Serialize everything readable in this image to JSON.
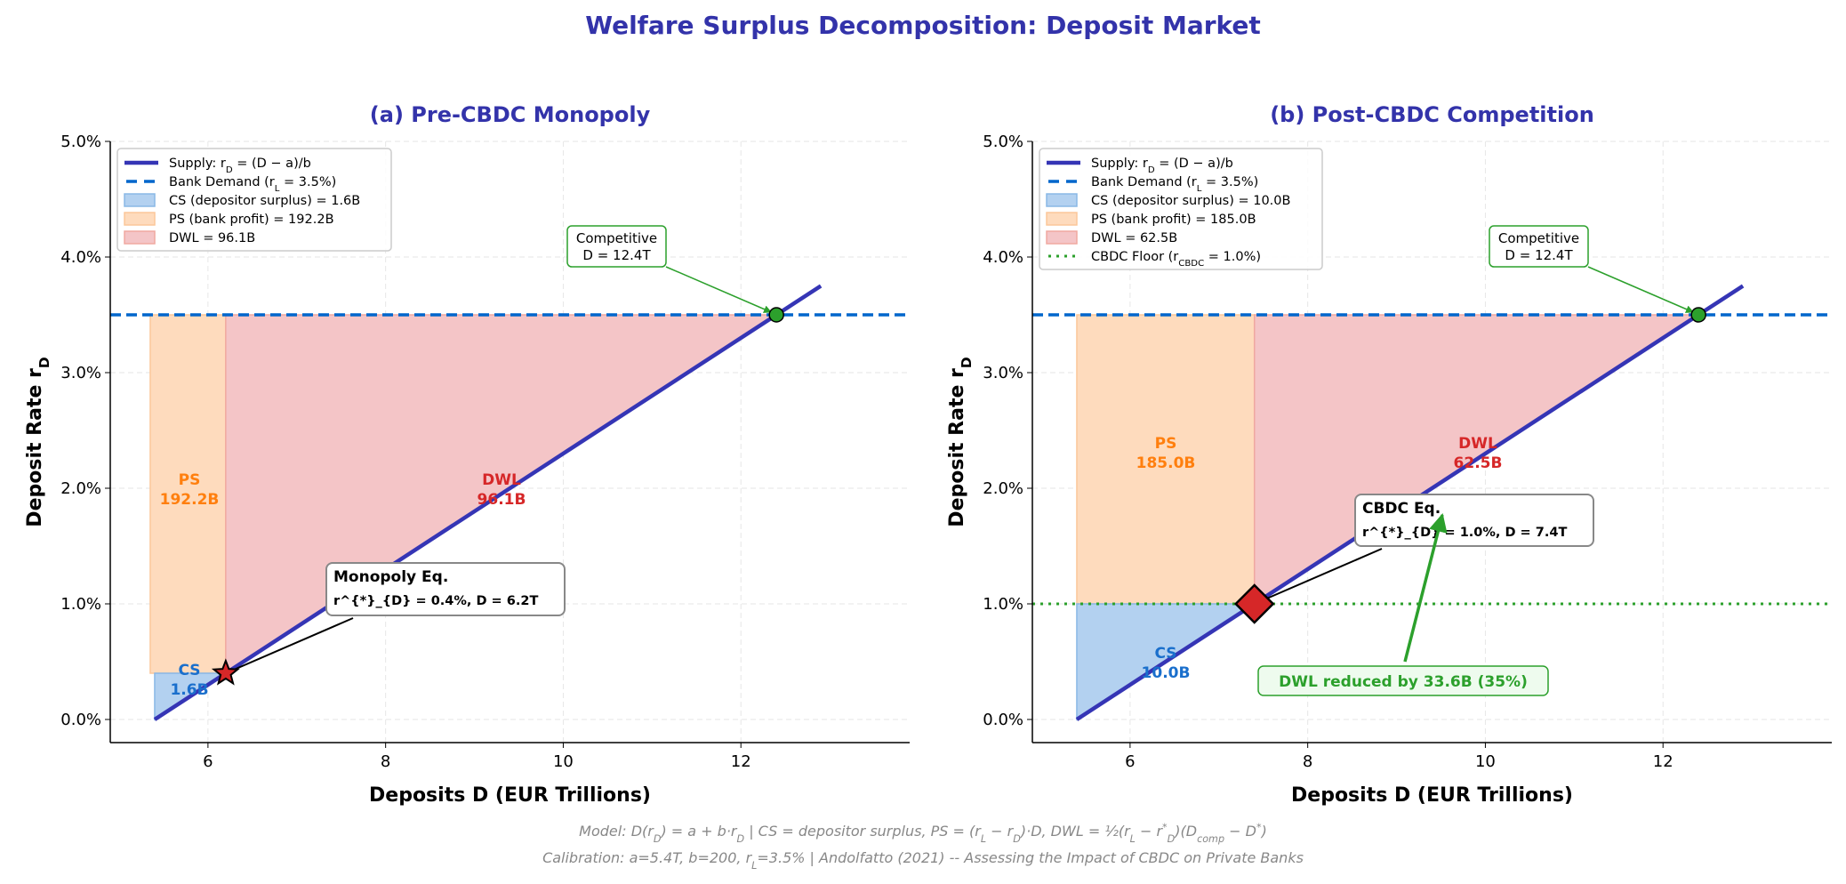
{
  "title": "Welfare Surplus Decomposition: Deposit Market",
  "footer": {
    "line1": "Model: D(r_{D}) = a + b·r_{D} | CS = depositor surplus, PS = (r_{L} − r_{D})·D, DWL = ½(r_{L} − r^{*}_{D})(D_{comp} − D^{*})",
    "line2": "Calibration: a=5.4T, b=200, r_{L}=3.5% | Andolfatto (2021) -- Assessing the Impact of CBDC on Private Banks"
  },
  "colors": {
    "title": "#3333aa",
    "supply": "#3535b5",
    "bank_demand": "#0066cc",
    "cs_fill": "#b3d1f0",
    "ps_fill": "#fedbbd",
    "dwl_fill": "#f4c5c7",
    "cs_text": "#1a6fcc",
    "ps_text": "#ff7f0e",
    "dwl_text": "#d62728",
    "green": "#2ca02c",
    "marker": "#d62728"
  },
  "chart_data": [
    {
      "type": "area",
      "title": "(a) Pre-CBDC Monopoly",
      "xlabel": "Deposits D (EUR Trillions)",
      "ylabel": "Deposit Rate r_{D}",
      "xlim": [
        4.9,
        13.9
      ],
      "ylim": [
        -0.2,
        5.0
      ],
      "xticks": [
        6,
        8,
        10,
        12
      ],
      "xtick_labels": [
        "6",
        "8",
        "10",
        "12"
      ],
      "yticks": [
        0,
        1,
        2,
        3,
        4,
        5
      ],
      "ytick_labels": [
        "0.0%",
        "1.0%",
        "2.0%",
        "3.0%",
        "4.0%",
        "5.0%"
      ],
      "grid": true,
      "legend_position": "upper-left",
      "supply": {
        "x": [
          5.4,
          12.9
        ],
        "y": [
          0,
          3.75
        ]
      },
      "bank_demand_rate": 3.5,
      "equilibrium": {
        "D": 6.2,
        "r": 0.4,
        "marker": "star"
      },
      "competitive": {
        "D": 12.4,
        "r": 3.5
      },
      "cbdc_floor": null,
      "areas": {
        "cs": {
          "D": [
            5.4,
            6.2
          ],
          "r": [
            0,
            0.4
          ],
          "value": "1.6B"
        },
        "ps": {
          "D": [
            5.35,
            6.2
          ],
          "r": [
            0.4,
            3.5
          ],
          "value": "192.2B"
        },
        "dwl": {
          "D": [
            6.2,
            12.4
          ],
          "r": [
            0.4,
            3.5
          ],
          "value": "96.1B"
        }
      },
      "legend": [
        {
          "kind": "solid",
          "label": "Supply: r_{D} = (D − a)/b"
        },
        {
          "kind": "dashed",
          "label": "Bank Demand (r_{L} = 3.5%)"
        },
        {
          "kind": "cs",
          "label": "CS (depositor surplus) = 1.6B"
        },
        {
          "kind": "ps",
          "label": "PS (bank profit) = 192.2B"
        },
        {
          "kind": "dwl",
          "label": "DWL = 96.1B"
        }
      ],
      "area_labels": {
        "ps": [
          "PS",
          "192.2B"
        ],
        "dwl": [
          "DWL",
          "96.1B"
        ],
        "cs": [
          "CS",
          "1.6B"
        ]
      },
      "annotations": {
        "competitive": [
          "Competitive",
          "D = 12.4T"
        ],
        "equilibrium": [
          "Monopoly Eq.",
          "r^{*}_{D} = 0.4%, D = 6.2T"
        ]
      }
    },
    {
      "type": "area",
      "title": "(b) Post-CBDC Competition",
      "xlabel": "Deposits D (EUR Trillions)",
      "ylabel": "Deposit Rate r_{D}",
      "xlim": [
        4.9,
        13.9
      ],
      "ylim": [
        -0.2,
        5.0
      ],
      "xticks": [
        6,
        8,
        10,
        12
      ],
      "xtick_labels": [
        "6",
        "8",
        "10",
        "12"
      ],
      "yticks": [
        0,
        1,
        2,
        3,
        4,
        5
      ],
      "ytick_labels": [
        "0.0%",
        "1.0%",
        "2.0%",
        "3.0%",
        "4.0%",
        "5.0%"
      ],
      "grid": true,
      "legend_position": "upper-left",
      "supply": {
        "x": [
          5.4,
          12.9
        ],
        "y": [
          0,
          3.75
        ]
      },
      "bank_demand_rate": 3.5,
      "equilibrium": {
        "D": 7.4,
        "r": 1.0,
        "marker": "diamond"
      },
      "competitive": {
        "D": 12.4,
        "r": 3.5
      },
      "cbdc_floor": 1.0,
      "areas": {
        "cs": {
          "D": [
            5.4,
            7.4
          ],
          "r": [
            0,
            1.0
          ],
          "value": "10.0B"
        },
        "ps": {
          "D": [
            5.4,
            7.4
          ],
          "r": [
            1.0,
            3.5
          ],
          "value": "185.0B"
        },
        "dwl": {
          "D": [
            7.4,
            12.4
          ],
          "r": [
            1.0,
            3.5
          ],
          "value": "62.5B"
        }
      },
      "legend": [
        {
          "kind": "solid",
          "label": "Supply: r_{D} = (D − a)/b"
        },
        {
          "kind": "dashed",
          "label": "Bank Demand (r_{L} = 3.5%)"
        },
        {
          "kind": "cs",
          "label": "CS (depositor surplus) = 10.0B"
        },
        {
          "kind": "ps",
          "label": "PS (bank profit) = 185.0B"
        },
        {
          "kind": "dwl",
          "label": "DWL = 62.5B"
        },
        {
          "kind": "dotted",
          "label": "CBDC Floor (r_{CBDC} = 1.0%)"
        }
      ],
      "area_labels": {
        "ps": [
          "PS",
          "185.0B"
        ],
        "dwl": [
          "DWL",
          "62.5B"
        ],
        "cs": [
          "CS",
          "10.0B"
        ]
      },
      "annotations": {
        "competitive": [
          "Competitive",
          "D = 12.4T"
        ],
        "equilibrium": [
          "CBDC Eq.",
          "r^{*}_{D} = 1.0%, D = 7.4T"
        ],
        "reduction": "DWL reduced by 33.6B (35%)"
      }
    }
  ]
}
